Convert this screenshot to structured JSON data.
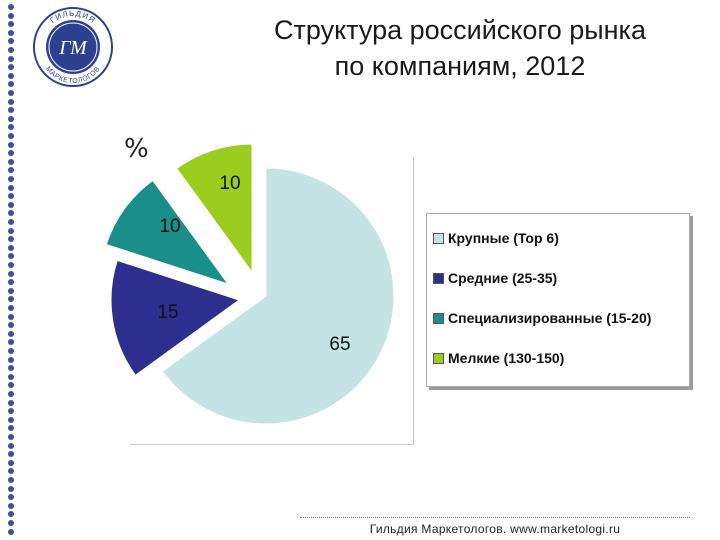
{
  "header": {
    "title_line1": "Структура российского рынка",
    "title_line2": "по компаниям, 2012"
  },
  "logo": {
    "text_top": "ГИЛЬДИЯ",
    "text_bottom": "МАРКЕТОЛОГОВ",
    "monogram": "ГМ"
  },
  "footer": {
    "text": "Гильдия Маркетологов. www.marketologi.ru"
  },
  "chart_data": {
    "type": "pie",
    "title": "Структура российского рынка по компаниям, 2012",
    "unit_label": "%",
    "slices": [
      {
        "label": "Крупные (Top 6)",
        "value": 65,
        "value_label": "65",
        "color": "#c4e3e4"
      },
      {
        "label": "Средние (25-35)",
        "value": 15,
        "value_label": "15",
        "color": "#2e2e8f"
      },
      {
        "label": "Специализированные (15-20)",
        "value": 10,
        "value_label": "10",
        "color": "#1a8f8a"
      },
      {
        "label": "Мелкие (130-150)",
        "value": 10,
        "value_label": "10",
        "color": "#9acd1e"
      }
    ],
    "legend_position": "right",
    "exploded": true
  },
  "colors": {
    "accent_dots": "#3d4f9e",
    "logo_blue": "#2d3f8f"
  }
}
